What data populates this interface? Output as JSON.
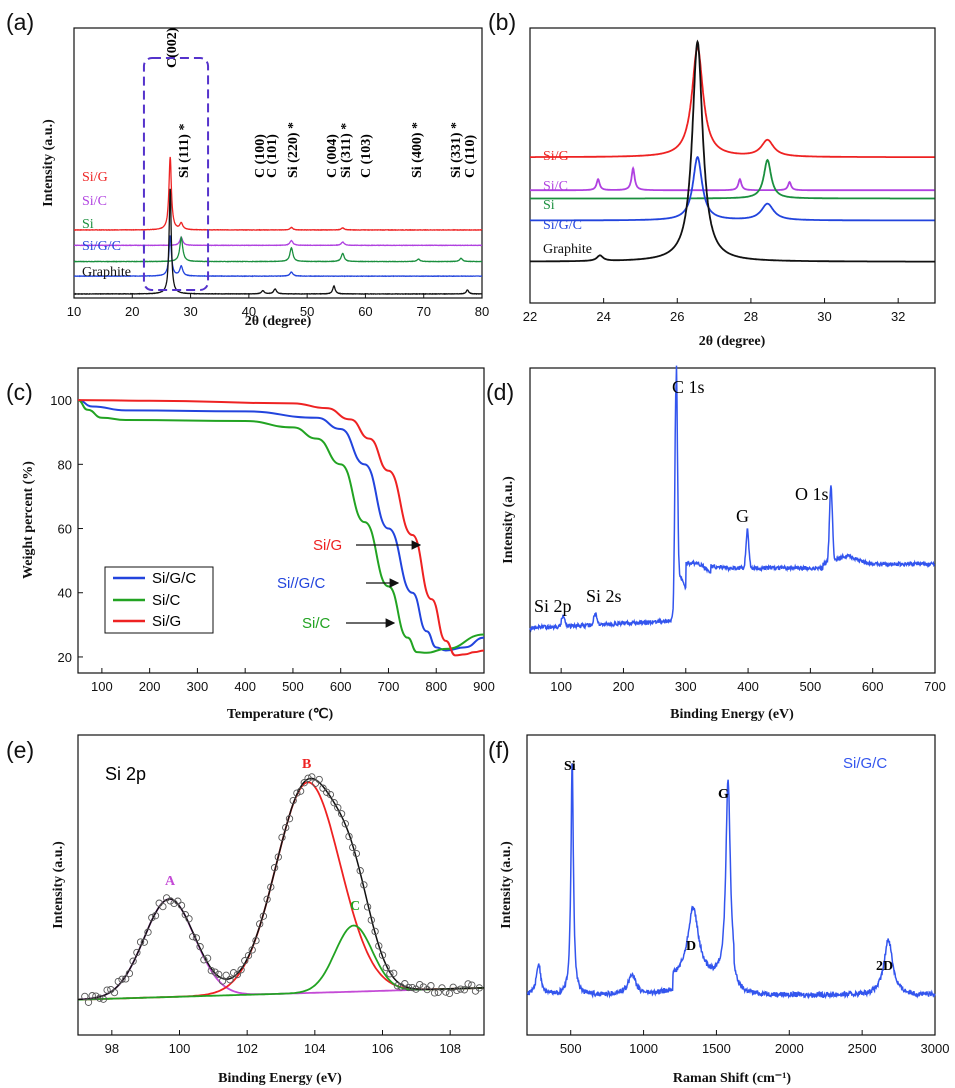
{
  "colors": {
    "SiG": "#ee2222",
    "SiC": "#b041e0",
    "Si": "#1a8f3e",
    "SiGC": "#2244dd",
    "Graphite": "#111111",
    "green": "#22a322",
    "violet": "#c44bd6",
    "black": "#111111",
    "blue": "#3355ee"
  },
  "chart_data": [
    {
      "id": "a",
      "type": "line",
      "panel_label": "(a)",
      "xlabel": "2θ (degree)",
      "ylabel": "Intensity (a.u.)",
      "xlim": [
        10,
        80
      ],
      "xticks": [
        10,
        20,
        30,
        40,
        50,
        60,
        70,
        80
      ],
      "series": [
        {
          "name": "Si/G",
          "color": "SiG",
          "offset": 0.84,
          "peaks": [
            [
              26.5,
              0.9,
              0.25
            ],
            [
              28.4,
              0.08,
              0.3
            ],
            [
              47.3,
              0.03,
              0.3
            ],
            [
              56.1,
              0.025,
              0.3
            ]
          ]
        },
        {
          "name": "Si/C",
          "color": "SiC",
          "offset": 0.65,
          "peaks": [
            [
              28.4,
              0.1,
              0.3
            ],
            [
              47.3,
              0.06,
              0.3
            ],
            [
              56.1,
              0.04,
              0.3
            ]
          ]
        },
        {
          "name": "Si",
          "color": "Si",
          "offset": 0.45,
          "peaks": [
            [
              28.4,
              0.3,
              0.3
            ],
            [
              47.3,
              0.17,
              0.3
            ],
            [
              56.1,
              0.1,
              0.3
            ],
            [
              69.1,
              0.03,
              0.3
            ],
            [
              76.4,
              0.04,
              0.3
            ]
          ]
        },
        {
          "name": "Si/G/C",
          "color": "SiGC",
          "offset": 0.27,
          "peaks": [
            [
              26.5,
              0.5,
              0.25
            ],
            [
              28.4,
              0.12,
              0.3
            ],
            [
              47.3,
              0.05,
              0.3
            ]
          ]
        },
        {
          "name": "Graphite",
          "color": "Graphite",
          "offset": 0.05,
          "peaks": [
            [
              26.5,
              1.3,
              0.22
            ],
            [
              42.4,
              0.04,
              0.3
            ],
            [
              44.5,
              0.06,
              0.3
            ],
            [
              54.6,
              0.1,
              0.25
            ],
            [
              77.5,
              0.05,
              0.25
            ]
          ]
        }
      ],
      "peak_labels": [
        "C(002)",
        "Si (111) *",
        "C (100)",
        "C (101)",
        "Si (220) *",
        "C (004)",
        "Si (311) *",
        "C (103)",
        "Si (400) *",
        "Si (331) *",
        "C (110)"
      ],
      "highlight_box": [
        22,
        33
      ]
    },
    {
      "id": "b",
      "type": "line",
      "panel_label": "(b)",
      "xlabel": "2θ (degree)",
      "ylabel": "",
      "xlim": [
        22,
        33
      ],
      "xticks": [
        22,
        24,
        26,
        28,
        30,
        32
      ],
      "series": [
        {
          "name": "Si/G",
          "color": "SiG",
          "offset": 0.53,
          "peaks": [
            [
              26.55,
              0.4,
              0.18
            ],
            [
              28.45,
              0.06,
              0.2
            ]
          ]
        },
        {
          "name": "Si/C",
          "color": "SiC",
          "offset": 0.41,
          "peaks": [
            [
              23.85,
              0.04,
              0.05
            ],
            [
              24.8,
              0.08,
              0.05
            ],
            [
              27.7,
              0.04,
              0.05
            ],
            [
              29.05,
              0.03,
              0.05
            ]
          ]
        },
        {
          "name": "Si",
          "color": "Si",
          "offset": 0.38,
          "peaks": [
            [
              28.45,
              0.14,
              0.12
            ]
          ]
        },
        {
          "name": "Si/G/C",
          "color": "SiGC",
          "offset": 0.3,
          "peaks": [
            [
              26.55,
              0.23,
              0.15
            ],
            [
              28.45,
              0.06,
              0.2
            ]
          ]
        },
        {
          "name": "Graphite",
          "color": "Graphite",
          "offset": 0.15,
          "peaks": [
            [
              26.55,
              0.8,
              0.17
            ],
            [
              23.9,
              0.02,
              0.1
            ]
          ]
        }
      ]
    },
    {
      "id": "c",
      "type": "line",
      "panel_label": "(c)",
      "xlabel": "Temperature (℃)",
      "ylabel": "Weight percent (%)",
      "xlim": [
        50,
        900
      ],
      "ylim": [
        15,
        110
      ],
      "xticks": [
        100,
        200,
        300,
        400,
        500,
        600,
        700,
        800,
        900
      ],
      "yticks": [
        20,
        40,
        60,
        80,
        100
      ],
      "legend": {
        "placement": "left-middle",
        "entries": [
          "Si/G/C",
          "Si/C",
          "Si/G"
        ]
      },
      "annotations": [
        "Si/G",
        "Si//G/C",
        "Si/C"
      ],
      "series": [
        {
          "name": "Si/G/C",
          "color": "SiGC",
          "points": [
            [
              50,
              100
            ],
            [
              80,
              98
            ],
            [
              150,
              96.8
            ],
            [
              400,
              96.5
            ],
            [
              550,
              94.5
            ],
            [
              600,
              91
            ],
            [
              650,
              80
            ],
            [
              700,
              60
            ],
            [
              750,
              40
            ],
            [
              780,
              28
            ],
            [
              800,
              23
            ],
            [
              820,
              22
            ],
            [
              860,
              23
            ],
            [
              900,
              26
            ]
          ]
        },
        {
          "name": "Si/C",
          "color": "SiC_green",
          "points": [
            [
              50,
              100
            ],
            [
              70,
              97
            ],
            [
              100,
              94.5
            ],
            [
              150,
              93.8
            ],
            [
              400,
              93.5
            ],
            [
              500,
              91.5
            ],
            [
              550,
              88
            ],
            [
              600,
              80
            ],
            [
              650,
              62
            ],
            [
              700,
              42
            ],
            [
              740,
              26
            ],
            [
              760,
              21.5
            ],
            [
              780,
              21.3
            ],
            [
              820,
              22.5
            ],
            [
              900,
              27
            ]
          ]
        },
        {
          "name": "Si/G",
          "color": "SiG",
          "points": [
            [
              50,
              100
            ],
            [
              200,
              99.8
            ],
            [
              500,
              99
            ],
            [
              570,
              97.5
            ],
            [
              620,
              94
            ],
            [
              660,
              88
            ],
            [
              700,
              78
            ],
            [
              750,
              58
            ],
            [
              790,
              38
            ],
            [
              820,
              25
            ],
            [
              840,
              20.5
            ],
            [
              860,
              20.8
            ],
            [
              880,
              21.5
            ],
            [
              900,
              22
            ]
          ]
        }
      ]
    },
    {
      "id": "d",
      "type": "line",
      "panel_label": "(d)",
      "xlabel": "Binding Energy (eV)",
      "ylabel": "Intensity (a.u.)",
      "xlim": [
        50,
        700
      ],
      "xticks": [
        100,
        200,
        300,
        400,
        500,
        600,
        700
      ],
      "annotations": [
        "C 1s",
        "O 1s",
        "G",
        "Si 2p",
        "Si 2s"
      ]
    },
    {
      "id": "e",
      "type": "line",
      "panel_label": "(e)",
      "xlabel": "Binding Energy (eV)",
      "ylabel": "Intensity (a.u.)",
      "xlim": [
        97,
        109
      ],
      "xticks": [
        98,
        100,
        102,
        104,
        106,
        108
      ],
      "annotations": [
        "Si 2p",
        "A",
        "B",
        "C"
      ],
      "components": [
        {
          "name": "A",
          "center": 99.7,
          "height": 0.4,
          "sigma": 0.75
        },
        {
          "name": "B",
          "center": 103.8,
          "height": 0.86,
          "sigma": 0.95
        },
        {
          "name": "C",
          "center": 105.15,
          "height": 0.27,
          "sigma": 0.55
        }
      ]
    },
    {
      "id": "f",
      "type": "line",
      "panel_label": "(f)",
      "xlabel": "Raman Shift (cm⁻¹)",
      "ylabel": "Intensity (a.u.)",
      "xlim": [
        200,
        3000
      ],
      "xticks": [
        500,
        1000,
        1500,
        2000,
        2500,
        3000
      ],
      "annotations": [
        "Si",
        "D",
        "G",
        "2D"
      ],
      "legend_text": "Si/G/C",
      "peaks": [
        [
          280,
          0.12,
          18
        ],
        [
          510,
          0.92,
          10
        ],
        [
          920,
          0.08,
          30
        ],
        [
          1340,
          0.28,
          45
        ],
        [
          1580,
          0.78,
          18
        ],
        [
          2680,
          0.22,
          35
        ]
      ]
    }
  ]
}
